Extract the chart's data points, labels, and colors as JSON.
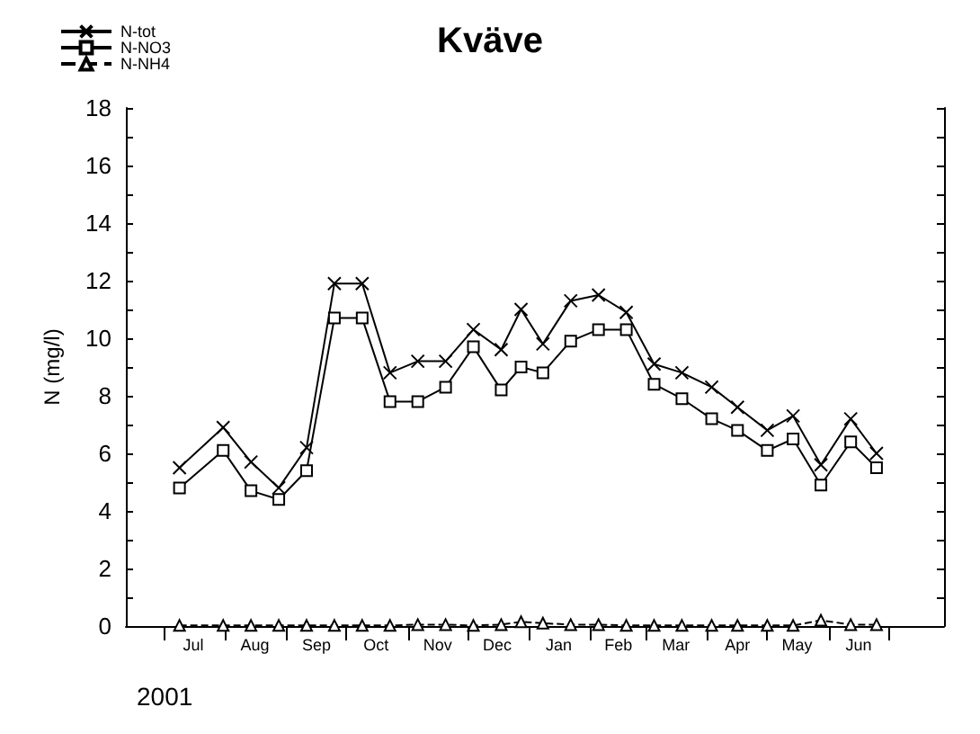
{
  "chart_data": {
    "type": "line",
    "title": "Kväve",
    "ylabel": "N (mg/l)",
    "annotations": [
      "2001"
    ],
    "x": [
      "2001-07-09",
      "2001-07-31",
      "2001-08-14",
      "2001-08-28",
      "2001-09-11",
      "2001-09-25",
      "2001-10-09",
      "2001-10-23",
      "2001-11-06",
      "2001-11-20",
      "2001-12-04",
      "2001-12-18",
      "2001-12-28",
      "2002-01-08",
      "2002-01-22",
      "2002-02-05",
      "2002-02-19",
      "2002-03-05",
      "2002-03-19",
      "2002-04-03",
      "2002-04-16",
      "2002-05-01",
      "2002-05-14",
      "2002-05-28",
      "2002-06-12",
      "2002-06-25"
    ],
    "series": [
      {
        "name": "N-tot",
        "color": "#000000",
        "marker": "cross",
        "line_style": "solid",
        "values": [
          5.5,
          6.9,
          5.7,
          4.8,
          6.2,
          11.9,
          11.9,
          8.8,
          9.2,
          9.2,
          10.3,
          9.6,
          11.0,
          9.8,
          11.3,
          11.5,
          10.9,
          9.1,
          8.8,
          8.3,
          7.6,
          6.8,
          7.3,
          5.6,
          7.2,
          6.0
        ]
      },
      {
        "name": "N-NO3",
        "color": "#000000",
        "marker": "square",
        "line_style": "solid",
        "values": [
          4.8,
          6.1,
          4.7,
          4.4,
          5.4,
          10.7,
          10.7,
          7.8,
          7.8,
          8.3,
          9.7,
          8.2,
          9.0,
          8.8,
          9.9,
          10.3,
          10.3,
          8.4,
          7.9,
          7.2,
          6.8,
          6.1,
          6.5,
          4.9,
          6.4,
          5.5
        ]
      },
      {
        "name": "N-NH4",
        "color": "#000000",
        "marker": "triangle",
        "line_style": "dashed",
        "values": [
          0.02,
          0.02,
          0.02,
          0.02,
          0.02,
          0.02,
          0.02,
          0.02,
          0.05,
          0.05,
          0.02,
          0.05,
          0.15,
          0.1,
          0.05,
          0.05,
          0.02,
          0.02,
          0.02,
          0.02,
          0.02,
          0.02,
          0.02,
          0.2,
          0.05,
          0.05
        ]
      }
    ],
    "xlim": [
      "2001-06-12",
      "2002-07-29"
    ],
    "xticks": [
      {
        "value": "2001-07-01",
        "label": null
      },
      {
        "value": "2001-07-16",
        "label": "Jul"
      },
      {
        "value": "2001-08-01",
        "label": null
      },
      {
        "value": "2001-08-16",
        "label": "Aug"
      },
      {
        "value": "2001-09-01",
        "label": null
      },
      {
        "value": "2001-09-16",
        "label": "Sep"
      },
      {
        "value": "2001-10-01",
        "label": null
      },
      {
        "value": "2001-10-16",
        "label": "Oct"
      },
      {
        "value": "2001-11-01",
        "label": null
      },
      {
        "value": "2001-11-16",
        "label": "Nov"
      },
      {
        "value": "2001-12-01",
        "label": null
      },
      {
        "value": "2001-12-16",
        "label": "Dec"
      },
      {
        "value": "2002-01-01",
        "label": null
      },
      {
        "value": "2002-01-16",
        "label": "Jan"
      },
      {
        "value": "2002-02-01",
        "label": null
      },
      {
        "value": "2002-02-15",
        "label": "Feb"
      },
      {
        "value": "2002-03-01",
        "label": null
      },
      {
        "value": "2002-03-16",
        "label": "Mar"
      },
      {
        "value": "2002-04-01",
        "label": null
      },
      {
        "value": "2002-04-16",
        "label": "Apr"
      },
      {
        "value": "2002-05-01",
        "label": null
      },
      {
        "value": "2002-05-16",
        "label": "May"
      },
      {
        "value": "2002-06-01",
        "label": null
      },
      {
        "value": "2002-06-16",
        "label": "Jun"
      },
      {
        "value": "2002-07-01",
        "label": null
      }
    ],
    "ylim": [
      0,
      18
    ],
    "yticks": [
      0,
      {
        "value": 1,
        "label": null
      },
      2,
      {
        "value": 3,
        "label": null
      },
      4,
      {
        "value": 5,
        "label": null
      },
      6,
      {
        "value": 7,
        "label": null
      },
      8,
      {
        "value": 9,
        "label": null
      },
      10,
      {
        "value": 11,
        "label": null
      },
      12,
      {
        "value": 13,
        "label": null
      },
      14,
      {
        "value": 15,
        "label": null
      },
      16,
      {
        "value": 17,
        "label": null
      },
      18
    ],
    "grid": false,
    "legend": "top left"
  }
}
